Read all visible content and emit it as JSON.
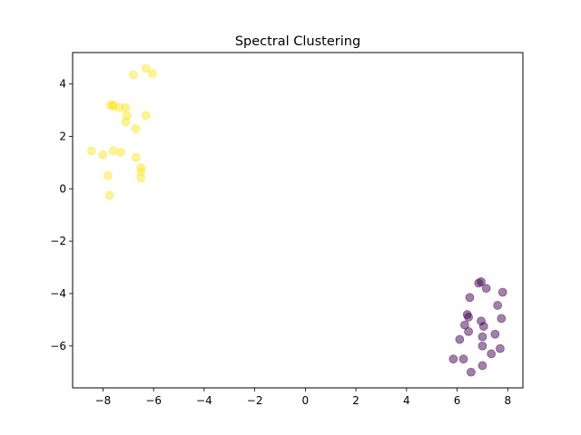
{
  "chart_data": {
    "type": "scatter",
    "title": "Spectral Clustering",
    "xlabel": "",
    "ylabel": "",
    "xlim": [
      -9.2,
      8.6
    ],
    "ylim": [
      -7.6,
      5.2
    ],
    "x_ticks": [
      -8,
      -6,
      -4,
      -2,
      0,
      2,
      4,
      6,
      8
    ],
    "y_ticks": [
      -6,
      -4,
      -2,
      0,
      2,
      4
    ],
    "grid": false,
    "legend": "none",
    "point_alpha": 0.5,
    "series": [
      {
        "color": "#fde725",
        "points": [
          [
            -6.3,
            4.6
          ],
          [
            -6.05,
            4.4
          ],
          [
            -6.8,
            4.35
          ],
          [
            -7.7,
            3.2
          ],
          [
            -7.6,
            3.2
          ],
          [
            -7.35,
            3.1
          ],
          [
            -7.1,
            3.1
          ],
          [
            -7.6,
            3.15
          ],
          [
            -7.05,
            2.8
          ],
          [
            -7.1,
            2.55
          ],
          [
            -6.3,
            2.8
          ],
          [
            -6.7,
            2.3
          ],
          [
            -8.45,
            1.45
          ],
          [
            -8.0,
            1.3
          ],
          [
            -7.6,
            1.45
          ],
          [
            -7.3,
            1.4
          ],
          [
            -6.7,
            1.2
          ],
          [
            -6.5,
            0.8
          ],
          [
            -6.5,
            0.65
          ],
          [
            -6.5,
            0.4
          ],
          [
            -7.8,
            0.5
          ],
          [
            -7.75,
            -0.25
          ]
        ]
      },
      {
        "color": "#440154",
        "points": [
          [
            6.95,
            -3.55
          ],
          [
            6.85,
            -3.6
          ],
          [
            7.15,
            -3.8
          ],
          [
            7.8,
            -3.95
          ],
          [
            6.5,
            -4.15
          ],
          [
            7.6,
            -4.45
          ],
          [
            6.4,
            -4.8
          ],
          [
            6.45,
            -4.9
          ],
          [
            6.95,
            -5.05
          ],
          [
            7.75,
            -4.95
          ],
          [
            6.3,
            -5.2
          ],
          [
            7.05,
            -5.25
          ],
          [
            6.45,
            -5.45
          ],
          [
            7.5,
            -5.55
          ],
          [
            6.1,
            -5.75
          ],
          [
            7.0,
            -5.65
          ],
          [
            7.0,
            -6.0
          ],
          [
            7.7,
            -6.1
          ],
          [
            7.35,
            -6.3
          ],
          [
            5.85,
            -6.5
          ],
          [
            6.25,
            -6.5
          ],
          [
            7.0,
            -6.75
          ],
          [
            6.55,
            -7.0
          ]
        ]
      }
    ]
  }
}
